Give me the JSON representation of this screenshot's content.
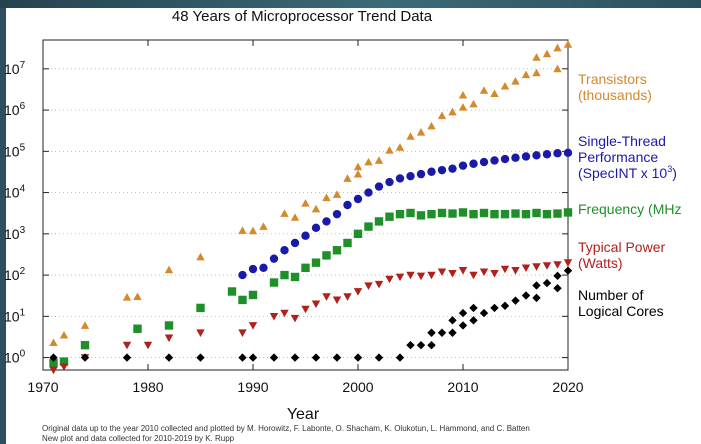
{
  "chart_data": {
    "type": "scatter",
    "title": "48 Years of Microprocessor Trend Data",
    "xlabel": "Year",
    "ylabel": "",
    "xlim": [
      1970,
      2020
    ],
    "ylim": [
      0.5,
      50000000
    ],
    "y_scale": "log",
    "x_ticks": [
      "1970",
      "1980",
      "1990",
      "2000",
      "2010",
      "2020"
    ],
    "y_ticks": [
      {
        "base": "10",
        "exp": "0"
      },
      {
        "base": "10",
        "exp": "1"
      },
      {
        "base": "10",
        "exp": "2"
      },
      {
        "base": "10",
        "exp": "3"
      },
      {
        "base": "10",
        "exp": "4"
      },
      {
        "base": "10",
        "exp": "5"
      },
      {
        "base": "10",
        "exp": "6"
      },
      {
        "base": "10",
        "exp": "7"
      }
    ],
    "legend_placement": "right",
    "series": [
      {
        "name": "Transistors (thousands)",
        "label_lines": [
          "Transistors",
          "(thousands)"
        ],
        "color": "#d4892b",
        "marker": "triangle-up",
        "points": [
          [
            1971,
            2.3
          ],
          [
            1972,
            3.5
          ],
          [
            1974,
            6
          ],
          [
            1978,
            29
          ],
          [
            1979,
            30
          ],
          [
            1982,
            134
          ],
          [
            1985,
            275
          ],
          [
            1989,
            1200
          ],
          [
            1990,
            1180
          ],
          [
            1991,
            1500
          ],
          [
            1993,
            3100
          ],
          [
            1994,
            2500
          ],
          [
            1995,
            5500
          ],
          [
            1996,
            4000
          ],
          [
            1997,
            7500
          ],
          [
            1998,
            9000
          ],
          [
            1999,
            22000
          ],
          [
            2000,
            28000
          ],
          [
            2000,
            42000
          ],
          [
            2001,
            55000
          ],
          [
            2002,
            60000
          ],
          [
            2003,
            106000
          ],
          [
            2004,
            125000
          ],
          [
            2005,
            230000
          ],
          [
            2006,
            290000
          ],
          [
            2007,
            410000
          ],
          [
            2008,
            730000
          ],
          [
            2009,
            900000
          ],
          [
            2010,
            1170000
          ],
          [
            2010,
            2300000
          ],
          [
            2011,
            1400000
          ],
          [
            2012,
            3000000
          ],
          [
            2013,
            2500000
          ],
          [
            2014,
            3800000
          ],
          [
            2015,
            5000000
          ],
          [
            2016,
            7200000
          ],
          [
            2017,
            8000000
          ],
          [
            2017,
            19000000
          ],
          [
            2018,
            23000000
          ],
          [
            2019,
            10000000
          ],
          [
            2019,
            32000000
          ],
          [
            2020,
            39000000
          ]
        ]
      },
      {
        "name": "Single-Thread Performance (SpecINT x 10^3)",
        "label_lines": [
          "Single-Thread",
          "Performance"
        ],
        "label_sup": {
          "text": "(SpecINT x 10",
          "sup": "3",
          "close": ")"
        },
        "color": "#1a1aa8",
        "marker": "circle",
        "points": [
          [
            1989,
            100
          ],
          [
            1990,
            140
          ],
          [
            1991,
            150
          ],
          [
            1992,
            250
          ],
          [
            1993,
            400
          ],
          [
            1994,
            600
          ],
          [
            1995,
            900
          ],
          [
            1996,
            1400
          ],
          [
            1997,
            2000
          ],
          [
            1998,
            3000
          ],
          [
            1999,
            5000
          ],
          [
            2000,
            7000
          ],
          [
            2001,
            10000
          ],
          [
            2002,
            14000
          ],
          [
            2003,
            18000
          ],
          [
            2004,
            22000
          ],
          [
            2005,
            25000
          ],
          [
            2006,
            28000
          ],
          [
            2007,
            32000
          ],
          [
            2008,
            35000
          ],
          [
            2009,
            38000
          ],
          [
            2010,
            45000
          ],
          [
            2011,
            50000
          ],
          [
            2012,
            55000
          ],
          [
            2013,
            60000
          ],
          [
            2014,
            65000
          ],
          [
            2015,
            70000
          ],
          [
            2016,
            75000
          ],
          [
            2017,
            80000
          ],
          [
            2018,
            85000
          ],
          [
            2019,
            90000
          ],
          [
            2020,
            92000
          ]
        ]
      },
      {
        "name": "Frequency (MHz)",
        "label_lines": [
          "Frequency (MHz"
        ],
        "color": "#1f8f2a",
        "marker": "square",
        "points": [
          [
            1971,
            0.74
          ],
          [
            1972,
            0.8
          ],
          [
            1974,
            2
          ],
          [
            1979,
            5
          ],
          [
            1982,
            6
          ],
          [
            1985,
            16
          ],
          [
            1988,
            40
          ],
          [
            1989,
            25
          ],
          [
            1990,
            33
          ],
          [
            1992,
            66
          ],
          [
            1993,
            100
          ],
          [
            1994,
            90
          ],
          [
            1995,
            150
          ],
          [
            1996,
            200
          ],
          [
            1997,
            300
          ],
          [
            1998,
            400
          ],
          [
            1999,
            600
          ],
          [
            2000,
            1000
          ],
          [
            2001,
            1500
          ],
          [
            2002,
            2000
          ],
          [
            2003,
            2600
          ],
          [
            2004,
            3000
          ],
          [
            2005,
            3200
          ],
          [
            2006,
            2800
          ],
          [
            2007,
            3000
          ],
          [
            2008,
            3200
          ],
          [
            2009,
            3100
          ],
          [
            2010,
            3300
          ],
          [
            2011,
            3000
          ],
          [
            2012,
            3200
          ],
          [
            2013,
            3000
          ],
          [
            2014,
            3000
          ],
          [
            2015,
            3100
          ],
          [
            2016,
            3000
          ],
          [
            2017,
            3200
          ],
          [
            2018,
            3000
          ],
          [
            2019,
            3100
          ],
          [
            2020,
            3300
          ]
        ]
      },
      {
        "name": "Typical Power (Watts)",
        "label_lines": [
          "Typical Power",
          "(Watts)"
        ],
        "color": "#b0201c",
        "marker": "triangle-down",
        "points": [
          [
            1971,
            0.5
          ],
          [
            1972,
            0.6
          ],
          [
            1974,
            1
          ],
          [
            1978,
            2
          ],
          [
            1980,
            2
          ],
          [
            1982,
            3
          ],
          [
            1985,
            4
          ],
          [
            1989,
            4
          ],
          [
            1990,
            6
          ],
          [
            1992,
            10
          ],
          [
            1993,
            12
          ],
          [
            1994,
            9
          ],
          [
            1995,
            15
          ],
          [
            1996,
            20
          ],
          [
            1997,
            30
          ],
          [
            1998,
            25
          ],
          [
            1999,
            30
          ],
          [
            2000,
            40
          ],
          [
            2001,
            55
          ],
          [
            2002,
            60
          ],
          [
            2003,
            80
          ],
          [
            2004,
            90
          ],
          [
            2005,
            100
          ],
          [
            2006,
            95
          ],
          [
            2007,
            100
          ],
          [
            2008,
            120
          ],
          [
            2009,
            110
          ],
          [
            2010,
            130
          ],
          [
            2011,
            100
          ],
          [
            2012,
            120
          ],
          [
            2013,
            110
          ],
          [
            2014,
            140
          ],
          [
            2015,
            130
          ],
          [
            2016,
            150
          ],
          [
            2017,
            160
          ],
          [
            2018,
            170
          ],
          [
            2019,
            180
          ],
          [
            2020,
            200
          ]
        ]
      },
      {
        "name": "Number of Logical Cores",
        "label_lines": [
          "Number of",
          "Logical Cores"
        ],
        "color": "#000000",
        "marker": "diamond",
        "points": [
          [
            1971,
            1
          ],
          [
            1974,
            1
          ],
          [
            1978,
            1
          ],
          [
            1982,
            1
          ],
          [
            1985,
            1
          ],
          [
            1989,
            1
          ],
          [
            1990,
            1
          ],
          [
            1992,
            1
          ],
          [
            1994,
            1
          ],
          [
            1996,
            1
          ],
          [
            1998,
            1
          ],
          [
            2000,
            1
          ],
          [
            2002,
            1
          ],
          [
            2004,
            1
          ],
          [
            2005,
            2
          ],
          [
            2006,
            2
          ],
          [
            2007,
            2
          ],
          [
            2007,
            4
          ],
          [
            2008,
            4
          ],
          [
            2009,
            4
          ],
          [
            2009,
            8
          ],
          [
            2010,
            6
          ],
          [
            2010,
            12
          ],
          [
            2011,
            8
          ],
          [
            2011,
            16
          ],
          [
            2012,
            12
          ],
          [
            2013,
            16
          ],
          [
            2014,
            18
          ],
          [
            2015,
            24
          ],
          [
            2016,
            32
          ],
          [
            2017,
            28
          ],
          [
            2017,
            56
          ],
          [
            2018,
            64
          ],
          [
            2019,
            48
          ],
          [
            2019,
            96
          ],
          [
            2020,
            128
          ]
        ]
      }
    ],
    "credits": [
      "Original data up to the year 2010 collected and plotted by M. Horowitz, F. Labonte, O. Shacham, K. Olukotun, L. Hammond, and C. Batten",
      "New plot and data collected for 2010-2019 by K. Rupp"
    ]
  }
}
